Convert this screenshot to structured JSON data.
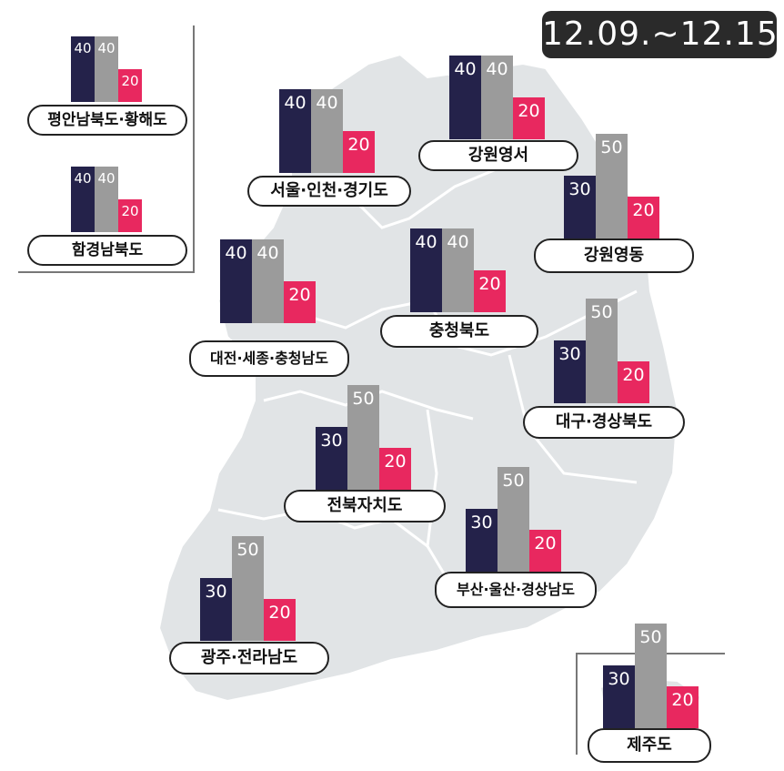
{
  "date_range": "12.09.~12.15.",
  "colors": {
    "navy": "#24224a",
    "gray": "#9b9b9b",
    "pink": "#e8285f",
    "map_fill": "#e1e4e6",
    "map_stroke": "#ffffff"
  },
  "chart_data": {
    "type": "bar",
    "categories": [
      "평안남북도·황해도",
      "함경남북도",
      "서울·인천·경기도",
      "강원영서",
      "강원영동",
      "대전·세종·충청남도",
      "충청북도",
      "대구·경상북도",
      "전북자치도",
      "부산·울산·경상남도",
      "광주·전라남도",
      "제주도"
    ],
    "series": [
      {
        "color": "#24224a",
        "values": [
          40,
          40,
          40,
          40,
          30,
          40,
          40,
          30,
          30,
          30,
          30,
          30
        ]
      },
      {
        "color": "#9b9b9b",
        "values": [
          40,
          40,
          40,
          40,
          50,
          40,
          40,
          50,
          50,
          50,
          50,
          50
        ]
      },
      {
        "color": "#e8285f",
        "values": [
          20,
          20,
          20,
          20,
          20,
          20,
          20,
          20,
          20,
          20,
          20,
          20
        ]
      }
    ],
    "ylim": [
      0,
      50
    ]
  }
}
